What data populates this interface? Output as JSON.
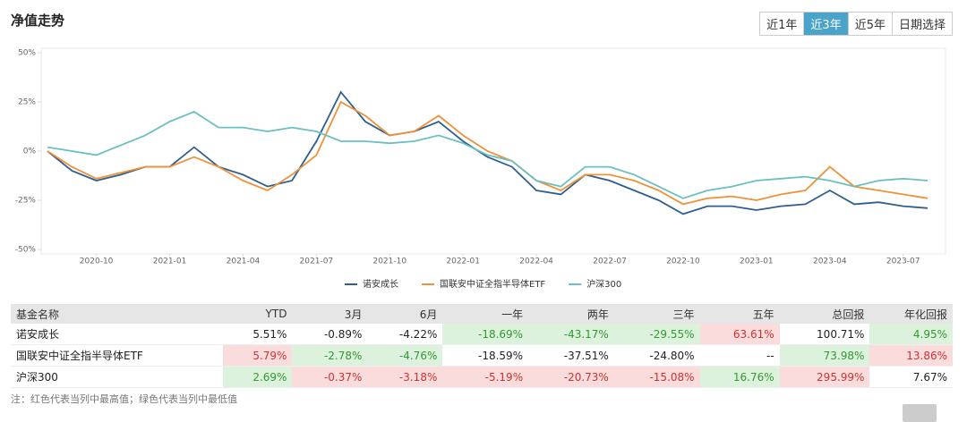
{
  "header": {
    "title": "净值走势",
    "buttons": [
      "近1年",
      "近3年",
      "近5年",
      "日期选择"
    ],
    "active_button": 1
  },
  "chart_data": {
    "type": "line",
    "x": [
      "2020-08",
      "2020-09",
      "2020-10",
      "2020-11",
      "2020-12",
      "2021-01",
      "2021-02",
      "2021-03",
      "2021-04",
      "2021-05",
      "2021-06",
      "2021-07",
      "2021-08",
      "2021-09",
      "2021-10",
      "2021-11",
      "2021-12",
      "2022-01",
      "2022-02",
      "2022-03",
      "2022-04",
      "2022-05",
      "2022-06",
      "2022-07",
      "2022-08",
      "2022-09",
      "2022-10",
      "2022-11",
      "2022-12",
      "2023-01",
      "2023-02",
      "2023-03",
      "2023-04",
      "2023-05",
      "2023-06",
      "2023-07",
      "2023-08"
    ],
    "xticks": [
      "2020-10",
      "2021-01",
      "2021-04",
      "2021-07",
      "2021-10",
      "2022-01",
      "2022-04",
      "2022-07",
      "2022-10",
      "2023-01",
      "2023-04",
      "2023-07"
    ],
    "ylim": [
      -50,
      50
    ],
    "yticks": [
      {
        "value": 50,
        "label": "50%"
      },
      {
        "value": 25,
        "label": "25%"
      },
      {
        "value": 0,
        "label": "0%"
      },
      {
        "value": -25,
        "label": "-25%"
      },
      {
        "value": -50,
        "label": "-50%"
      }
    ],
    "grid": false,
    "series": [
      {
        "name": "诺安成长",
        "color": "#2f5f8f",
        "values": [
          0,
          -10,
          -15,
          -12,
          -8,
          -8,
          2,
          -8,
          -12,
          -18,
          -15,
          5,
          30,
          15,
          8,
          10,
          15,
          5,
          -3,
          -8,
          -20,
          -22,
          -12,
          -15,
          -20,
          -25,
          -32,
          -28,
          -28,
          -30,
          -28,
          -27,
          -20,
          -27,
          -26,
          -28,
          -29
        ]
      },
      {
        "name": "国联安中证全指半导体ETF",
        "color": "#f0913a",
        "values": [
          0,
          -8,
          -14,
          -11,
          -8,
          -8,
          -3,
          -8,
          -15,
          -20,
          -12,
          -2,
          25,
          18,
          8,
          10,
          18,
          8,
          0,
          -5,
          -15,
          -20,
          -12,
          -12,
          -15,
          -20,
          -27,
          -24,
          -23,
          -25,
          -22,
          -20,
          -8,
          -18,
          -20,
          -22,
          -24
        ]
      },
      {
        "name": "沪深300",
        "color": "#6cbfc0",
        "values": [
          2,
          0,
          -2,
          3,
          8,
          15,
          20,
          12,
          12,
          10,
          12,
          10,
          5,
          5,
          4,
          5,
          8,
          4,
          -2,
          -5,
          -15,
          -18,
          -8,
          -8,
          -12,
          -18,
          -24,
          -20,
          -18,
          -15,
          -14,
          -13,
          -15,
          -18,
          -15,
          -14,
          -15
        ]
      }
    ]
  },
  "table": {
    "columns": [
      "基金名称",
      "YTD",
      "3月",
      "6月",
      "一年",
      "两年",
      "三年",
      "五年",
      "总回报",
      "年化回报"
    ],
    "rows": [
      [
        "诺安成长",
        "5.51%",
        "-0.89%",
        "-4.22%",
        "-18.69%",
        "-43.17%",
        "-29.55%",
        "63.61%",
        "100.71%",
        "4.95%"
      ],
      [
        "国联安中证全指半导体ETF",
        "5.79%",
        "-2.78%",
        "-4.76%",
        "-18.59%",
        "-37.51%",
        "-24.80%",
        "--",
        "73.98%",
        "13.86%"
      ],
      [
        "沪深300",
        "2.69%",
        "-0.37%",
        "-3.18%",
        "-5.19%",
        "-20.73%",
        "-15.08%",
        "16.76%",
        "295.99%",
        "7.67%"
      ]
    ]
  },
  "note": "注：红色代表当列中最高值；绿色代表当列中最低值"
}
